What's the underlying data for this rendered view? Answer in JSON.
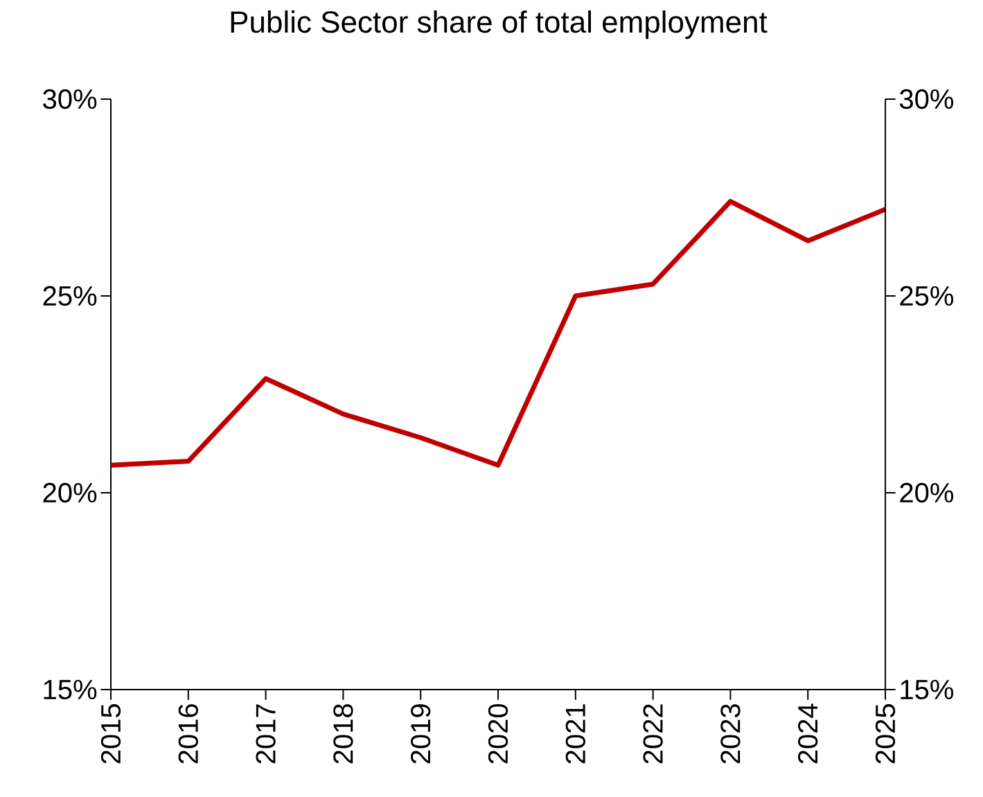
{
  "chart_data": {
    "type": "line",
    "title": "Public Sector share of total employment",
    "x": [
      2015,
      2016,
      2017,
      2018,
      2019,
      2020,
      2021,
      2022,
      2023,
      2024,
      2025
    ],
    "values": [
      20.7,
      20.8,
      22.9,
      22.0,
      21.4,
      20.7,
      25.0,
      25.3,
      27.4,
      26.4,
      27.2
    ],
    "color": "#c00000",
    "xlim": [
      2015,
      2025
    ],
    "xticks": [
      2015,
      2016,
      2017,
      2018,
      2019,
      2020,
      2021,
      2022,
      2023,
      2024,
      2025
    ],
    "ylim": [
      15,
      30
    ],
    "yticks": [
      {
        "value": 15,
        "label": "15%"
      },
      {
        "value": 20,
        "label": "20%"
      },
      {
        "value": 25,
        "label": "25%"
      },
      {
        "value": 30,
        "label": "30%"
      }
    ],
    "y2lim": [
      15,
      30
    ],
    "y2ticks": [
      {
        "value": 15,
        "label": "15%"
      },
      {
        "value": 20,
        "label": "20%"
      },
      {
        "value": 25,
        "label": "25%"
      },
      {
        "value": 30,
        "label": "30%"
      }
    ]
  }
}
